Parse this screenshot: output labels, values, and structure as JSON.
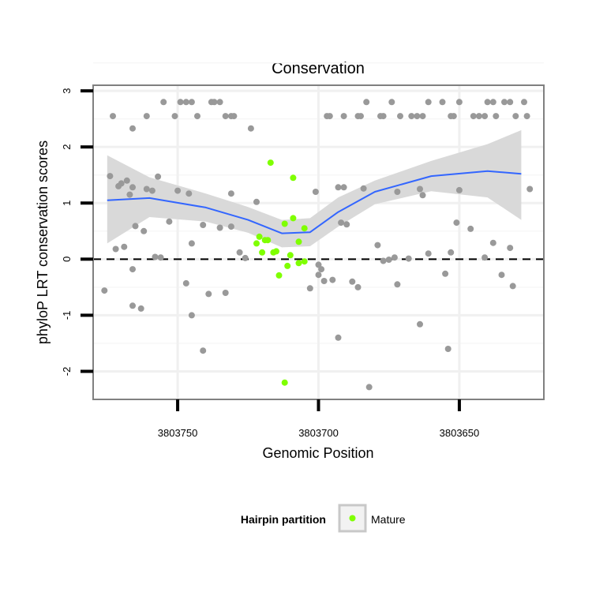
{
  "chart_data": {
    "type": "scatter",
    "title": "Conservation",
    "xlabel": "Genomic Position",
    "ylabel": "phyloP LRT conservation scores",
    "x_reversed": true,
    "xlim": [
      3803780,
      3803620
    ],
    "ylim": [
      -2.5,
      3.1
    ],
    "x_ticks": [
      3803750,
      3803700,
      3803650
    ],
    "x_tick_labels": [
      "3803750",
      "3803700",
      "3803650"
    ],
    "y_ticks": [
      -2,
      -1,
      0,
      1,
      2,
      3
    ],
    "y_tick_labels": [
      "-2",
      "-1",
      "0",
      "1",
      "2",
      "3"
    ],
    "grid": true,
    "reference_line_y": 0,
    "legend": {
      "title": "Hairpin partition",
      "position": "bottom",
      "entries": [
        "Mature"
      ]
    },
    "colors": {
      "other": "#999999",
      "mature": "#7fff00",
      "smooth": "#3366ff",
      "band": "#d9d9d9",
      "frame": "#808080"
    },
    "series": [
      {
        "role": "other",
        "points": [
          [
            3803773,
            2.55
          ],
          [
            3803766,
            2.33
          ],
          [
            3803761,
            2.55
          ],
          [
            3803755,
            2.8
          ],
          [
            3803751,
            2.55
          ],
          [
            3803749,
            2.8
          ],
          [
            3803747,
            2.8
          ],
          [
            3803745,
            2.8
          ],
          [
            3803743,
            2.55
          ],
          [
            3803738,
            2.8
          ],
          [
            3803737,
            2.8
          ],
          [
            3803735,
            2.8
          ],
          [
            3803733,
            2.55
          ],
          [
            3803731,
            2.55
          ],
          [
            3803730,
            2.55
          ],
          [
            3803724,
            2.33
          ],
          [
            3803697,
            2.55
          ],
          [
            3803696,
            2.55
          ],
          [
            3803691,
            2.55
          ],
          [
            3803686,
            2.55
          ],
          [
            3803685,
            2.55
          ],
          [
            3803683,
            2.8
          ],
          [
            3803678,
            2.55
          ],
          [
            3803677,
            2.55
          ],
          [
            3803674,
            2.8
          ],
          [
            3803671,
            2.55
          ],
          [
            3803667,
            2.55
          ],
          [
            3803665,
            2.55
          ],
          [
            3803663,
            2.55
          ],
          [
            3803661,
            2.8
          ],
          [
            3803656,
            2.8
          ],
          [
            3803653,
            2.55
          ],
          [
            3803652,
            2.55
          ],
          [
            3803650,
            2.8
          ],
          [
            3803645,
            2.55
          ],
          [
            3803643,
            2.55
          ],
          [
            3803641,
            2.55
          ],
          [
            3803640,
            2.8
          ],
          [
            3803638,
            2.8
          ],
          [
            3803637,
            2.55
          ],
          [
            3803634,
            2.8
          ],
          [
            3803632,
            2.8
          ],
          [
            3803630,
            2.55
          ],
          [
            3803627,
            2.8
          ],
          [
            3803626,
            2.55
          ],
          [
            3803774,
            1.48
          ],
          [
            3803771,
            1.3
          ],
          [
            3803770,
            1.35
          ],
          [
            3803768,
            1.4
          ],
          [
            3803767,
            1.15
          ],
          [
            3803766,
            1.28
          ],
          [
            3803761,
            1.25
          ],
          [
            3803759,
            1.22
          ],
          [
            3803757,
            1.47
          ],
          [
            3803750,
            1.22
          ],
          [
            3803746,
            1.17
          ],
          [
            3803731,
            1.17
          ],
          [
            3803722,
            1.02
          ],
          [
            3803701,
            1.2
          ],
          [
            3803693,
            1.28
          ],
          [
            3803691,
            1.28
          ],
          [
            3803684,
            1.26
          ],
          [
            3803672,
            1.2
          ],
          [
            3803664,
            1.25
          ],
          [
            3803663,
            1.14
          ],
          [
            3803650,
            1.23
          ],
          [
            3803625,
            1.25
          ],
          [
            3803772,
            0.18
          ],
          [
            3803769,
            0.22
          ],
          [
            3803766,
            -0.18
          ],
          [
            3803765,
            0.59
          ],
          [
            3803762,
            0.5
          ],
          [
            3803758,
            0.04
          ],
          [
            3803756,
            0.03
          ],
          [
            3803753,
            0.67
          ],
          [
            3803747,
            -0.43
          ],
          [
            3803745,
            0.28
          ],
          [
            3803741,
            0.61
          ],
          [
            3803735,
            0.56
          ],
          [
            3803733,
            -0.6
          ],
          [
            3803731,
            0.58
          ],
          [
            3803728,
            0.12
          ],
          [
            3803726,
            0.02
          ],
          [
            3803699,
            -0.18
          ],
          [
            3803698,
            -0.39
          ],
          [
            3803695,
            -0.37
          ],
          [
            3803692,
            0.65
          ],
          [
            3803690,
            0.62
          ],
          [
            3803688,
            -0.4
          ],
          [
            3803686,
            -0.5
          ],
          [
            3803679,
            0.25
          ],
          [
            3803677,
            -0.03
          ],
          [
            3803675,
            -0.01
          ],
          [
            3803673,
            0.03
          ],
          [
            3803672,
            -0.45
          ],
          [
            3803668,
            0.01
          ],
          [
            3803661,
            0.1
          ],
          [
            3803655,
            -0.26
          ],
          [
            3803653,
            0.12
          ],
          [
            3803651,
            0.65
          ],
          [
            3803646,
            0.54
          ],
          [
            3803641,
            0.03
          ],
          [
            3803638,
            0.29
          ],
          [
            3803635,
            -0.28
          ],
          [
            3803632,
            0.2
          ],
          [
            3803631,
            -0.48
          ],
          [
            3803703,
            -0.52
          ],
          [
            3803700,
            -0.1
          ],
          [
            3803700,
            -0.28
          ],
          [
            3803776,
            -0.56
          ],
          [
            3803766,
            -0.83
          ],
          [
            3803763,
            -0.88
          ],
          [
            3803745,
            -1.0
          ],
          [
            3803739,
            -0.62
          ],
          [
            3803741,
            -1.63
          ],
          [
            3803693,
            -1.4
          ],
          [
            3803682,
            -2.28
          ],
          [
            3803664,
            -1.16
          ],
          [
            3803654,
            -1.6
          ]
        ]
      },
      {
        "role": "mature",
        "name": "Mature",
        "points": [
          [
            3803717,
            1.72
          ],
          [
            3803709,
            1.45
          ],
          [
            3803709,
            0.73
          ],
          [
            3803712,
            0.63
          ],
          [
            3803705,
            0.55
          ],
          [
            3803721,
            0.4
          ],
          [
            3803719,
            0.34
          ],
          [
            3803718,
            0.34
          ],
          [
            3803722,
            0.28
          ],
          [
            3803715,
            0.14
          ],
          [
            3803716,
            0.12
          ],
          [
            3803720,
            0.12
          ],
          [
            3803710,
            0.07
          ],
          [
            3803707,
            0.31
          ],
          [
            3803705,
            -0.04
          ],
          [
            3803707,
            -0.07
          ],
          [
            3803711,
            -0.12
          ],
          [
            3803714,
            -0.29
          ],
          [
            3803712,
            -2.2
          ]
        ]
      }
    ],
    "smooth": {
      "fit": [
        [
          3803775,
          1.05
        ],
        [
          3803760,
          1.09
        ],
        [
          3803740,
          0.92
        ],
        [
          3803725,
          0.7
        ],
        [
          3803713,
          0.46
        ],
        [
          3803703,
          0.48
        ],
        [
          3803693,
          0.84
        ],
        [
          3803680,
          1.2
        ],
        [
          3803660,
          1.48
        ],
        [
          3803640,
          1.57
        ],
        [
          3803628,
          1.52
        ]
      ],
      "upper": [
        [
          3803775,
          1.85
        ],
        [
          3803760,
          1.46
        ],
        [
          3803740,
          1.17
        ],
        [
          3803725,
          0.93
        ],
        [
          3803713,
          0.7
        ],
        [
          3803703,
          0.73
        ],
        [
          3803693,
          1.1
        ],
        [
          3803680,
          1.4
        ],
        [
          3803660,
          1.75
        ],
        [
          3803640,
          2.05
        ],
        [
          3803628,
          2.3
        ]
      ],
      "lower": [
        [
          3803775,
          0.28
        ],
        [
          3803760,
          0.75
        ],
        [
          3803740,
          0.67
        ],
        [
          3803725,
          0.47
        ],
        [
          3803713,
          0.21
        ],
        [
          3803703,
          0.23
        ],
        [
          3803693,
          0.58
        ],
        [
          3803680,
          0.98
        ],
        [
          3803660,
          1.21
        ],
        [
          3803640,
          1.1
        ],
        [
          3803628,
          0.7
        ]
      ]
    }
  }
}
